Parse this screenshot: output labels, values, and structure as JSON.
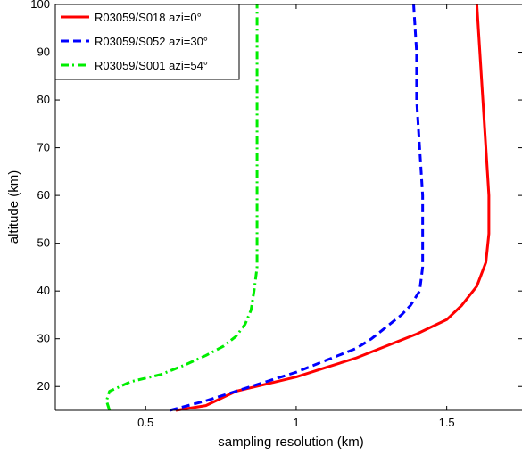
{
  "chart_data": {
    "type": "line",
    "xlabel": "sampling resolution (km)",
    "ylabel": "altitude (km)",
    "xlim": [
      0.2,
      1.75
    ],
    "ylim": [
      15,
      100
    ],
    "xticks": [
      0.5,
      1,
      1.5
    ],
    "xtick_labels": [
      "0.5",
      "1",
      "1.5"
    ],
    "yticks": [
      20,
      30,
      40,
      50,
      60,
      70,
      80,
      90,
      100
    ],
    "ytick_labels": [
      "20",
      "30",
      "40",
      "50",
      "60",
      "70",
      "80",
      "90",
      "100"
    ],
    "grid": false,
    "legend_position": "top-left",
    "series": [
      {
        "name": "R03059/S018 azi=0°",
        "color": "#ff0000",
        "dash": "solid",
        "points": [
          [
            0.6,
            15
          ],
          [
            0.7,
            16
          ],
          [
            0.75,
            17.5
          ],
          [
            0.8,
            19
          ],
          [
            0.9,
            20.5
          ],
          [
            1.0,
            22
          ],
          [
            1.1,
            24
          ],
          [
            1.2,
            26
          ],
          [
            1.3,
            28.5
          ],
          [
            1.4,
            31
          ],
          [
            1.5,
            34
          ],
          [
            1.55,
            37
          ],
          [
            1.6,
            41
          ],
          [
            1.63,
            46
          ],
          [
            1.64,
            52
          ],
          [
            1.64,
            60
          ],
          [
            1.63,
            70
          ],
          [
            1.62,
            80
          ],
          [
            1.61,
            90
          ],
          [
            1.6,
            100
          ]
        ]
      },
      {
        "name": "R03059/S052 azi=30°",
        "color": "#0000ff",
        "dash": "dashed",
        "points": [
          [
            0.58,
            15
          ],
          [
            0.7,
            17
          ],
          [
            0.8,
            19
          ],
          [
            0.9,
            21
          ],
          [
            1.0,
            23
          ],
          [
            1.1,
            25.5
          ],
          [
            1.2,
            28
          ],
          [
            1.25,
            30
          ],
          [
            1.3,
            32.5
          ],
          [
            1.35,
            35
          ],
          [
            1.38,
            37
          ],
          [
            1.41,
            40
          ],
          [
            1.42,
            45
          ],
          [
            1.42,
            52
          ],
          [
            1.42,
            60
          ],
          [
            1.41,
            70
          ],
          [
            1.4,
            80
          ],
          [
            1.4,
            90
          ],
          [
            1.39,
            100
          ]
        ]
      },
      {
        "name": "R03059/S001 azi=54°",
        "color": "#00ee00",
        "dash": "dashdot",
        "points": [
          [
            0.38,
            15
          ],
          [
            0.37,
            17
          ],
          [
            0.38,
            19
          ],
          [
            0.45,
            21
          ],
          [
            0.55,
            22.5
          ],
          [
            0.63,
            24.5
          ],
          [
            0.7,
            26.5
          ],
          [
            0.76,
            28.5
          ],
          [
            0.8,
            30.5
          ],
          [
            0.83,
            33
          ],
          [
            0.85,
            36
          ],
          [
            0.86,
            40
          ],
          [
            0.87,
            45
          ],
          [
            0.87,
            52
          ],
          [
            0.87,
            60
          ],
          [
            0.87,
            70
          ],
          [
            0.87,
            80
          ],
          [
            0.87,
            90
          ],
          [
            0.87,
            100
          ]
        ]
      }
    ]
  }
}
